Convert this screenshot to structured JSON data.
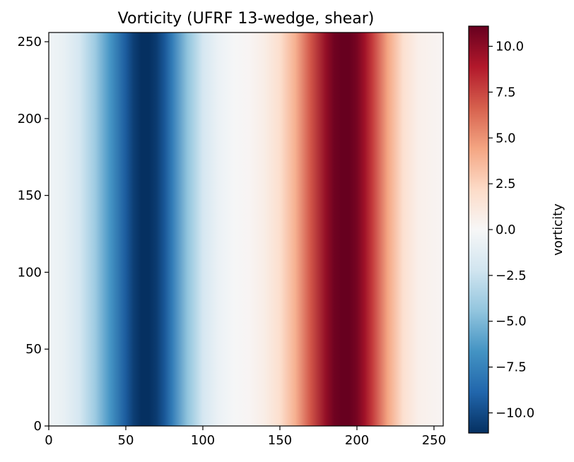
{
  "chart_data": {
    "type": "heatmap",
    "title": "Vorticity (UFRF 13-wedge, shear)",
    "xlabel": "",
    "ylabel": "",
    "xlim": [
      0,
      256
    ],
    "ylim": [
      0,
      256
    ],
    "x_ticks": [
      0,
      50,
      100,
      150,
      200,
      250
    ],
    "y_ticks": [
      0,
      50,
      100,
      150,
      200,
      250
    ],
    "colormap": "RdBu_r",
    "colorbar": {
      "label": "vorticity",
      "vmin": -11.1,
      "vmax": 11.1,
      "ticks": [
        -10.0,
        -7.5,
        -5.0,
        -2.5,
        0.0,
        2.5,
        5.0,
        7.5,
        10.0
      ],
      "tick_labels": [
        "−10.0",
        "−7.5",
        "−5.0",
        "−2.5",
        "0.0",
        "2.5",
        "5.0",
        "7.5",
        "10.0"
      ]
    },
    "field_profile": {
      "description_of_variation": "constant along y, varies along x",
      "x": [
        0,
        10,
        20,
        30,
        40,
        50,
        55,
        60,
        65,
        70,
        75,
        80,
        90,
        100,
        110,
        120,
        130,
        140,
        150,
        160,
        170,
        180,
        185,
        190,
        195,
        200,
        205,
        210,
        220,
        230,
        240,
        256
      ],
      "vorticity": [
        -0.4,
        -0.9,
        -2.0,
        -4.0,
        -6.6,
        -9.3,
        -10.5,
        -11.1,
        -11.1,
        -10.6,
        -9.5,
        -7.8,
        -4.5,
        -2.0,
        -0.7,
        -0.1,
        0.2,
        0.8,
        1.9,
        4.0,
        7.0,
        9.8,
        10.8,
        11.1,
        11.1,
        10.6,
        9.4,
        7.8,
        4.4,
        1.8,
        0.6,
        0.2
      ]
    }
  }
}
